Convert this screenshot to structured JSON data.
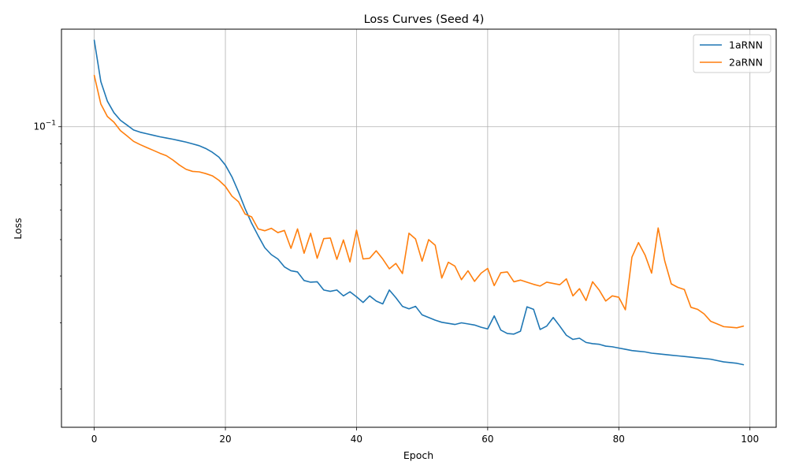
{
  "chart_data": {
    "type": "line",
    "title": "Loss Curves (Seed 4)",
    "xlabel": "Epoch",
    "ylabel": "Loss",
    "y_scale": "log",
    "xlim": [
      -5,
      104
    ],
    "ylim": [
      0.0158,
      0.182
    ],
    "x_ticks": [
      0,
      20,
      40,
      60,
      80,
      100
    ],
    "y_ticks": [
      {
        "value": 0.1,
        "label": "10^-1"
      }
    ],
    "grid": true,
    "legend_position": "upper right",
    "series": [
      {
        "name": "1aRNN",
        "color": "#1f77b4",
        "x_start": 0,
        "values": [
          0.17,
          0.132,
          0.117,
          0.109,
          0.104,
          0.101,
          0.098,
          0.0967,
          0.0958,
          0.0949,
          0.094,
          0.0933,
          0.0926,
          0.0918,
          0.091,
          0.09,
          0.089,
          0.0875,
          0.0855,
          0.083,
          0.079,
          0.0735,
          0.067,
          0.0605,
          0.0553,
          0.0512,
          0.0476,
          0.0456,
          0.0444,
          0.0423,
          0.0413,
          0.041,
          0.0389,
          0.0385,
          0.0386,
          0.0367,
          0.0364,
          0.0367,
          0.0354,
          0.0363,
          0.0352,
          0.034,
          0.0354,
          0.0343,
          0.0337,
          0.0367,
          0.035,
          0.0332,
          0.0327,
          0.0332,
          0.0315,
          0.031,
          0.0305,
          0.0301,
          0.0299,
          0.0297,
          0.03,
          0.0298,
          0.0296,
          0.0292,
          0.0289,
          0.0313,
          0.0287,
          0.0281,
          0.028,
          0.0285,
          0.0331,
          0.0326,
          0.0288,
          0.0294,
          0.031,
          0.0294,
          0.0278,
          0.0271,
          0.0273,
          0.0266,
          0.0264,
          0.0263,
          0.026,
          0.0259,
          0.0257,
          0.0255,
          0.0253,
          0.0252,
          0.0251,
          0.0249,
          0.0248,
          0.0247,
          0.0246,
          0.0245,
          0.0244,
          0.0243,
          0.0242,
          0.0241,
          0.024,
          0.0238,
          0.0236,
          0.0235,
          0.0234,
          0.0232
        ]
      },
      {
        "name": "2aRNN",
        "color": "#ff7f0e",
        "x_start": 0,
        "values": [
          0.137,
          0.115,
          0.1065,
          0.1028,
          0.0976,
          0.0945,
          0.0914,
          0.0896,
          0.088,
          0.0865,
          0.085,
          0.0837,
          0.0815,
          0.079,
          0.077,
          0.076,
          0.0758,
          0.075,
          0.074,
          0.072,
          0.0693,
          0.0653,
          0.0631,
          0.0585,
          0.0575,
          0.0534,
          0.0528,
          0.0536,
          0.0522,
          0.0529,
          0.0474,
          0.0534,
          0.046,
          0.052,
          0.0446,
          0.0503,
          0.0505,
          0.0443,
          0.0499,
          0.0436,
          0.053,
          0.0444,
          0.0446,
          0.0467,
          0.0444,
          0.0418,
          0.0432,
          0.0406,
          0.052,
          0.0502,
          0.0438,
          0.05,
          0.0483,
          0.0395,
          0.0435,
          0.0425,
          0.0391,
          0.0413,
          0.0387,
          0.0407,
          0.0419,
          0.0377,
          0.0408,
          0.041,
          0.0386,
          0.039,
          0.0385,
          0.038,
          0.0376,
          0.0385,
          0.0382,
          0.0379,
          0.0393,
          0.0354,
          0.037,
          0.0344,
          0.0386,
          0.0367,
          0.0343,
          0.0354,
          0.0351,
          0.0325,
          0.0449,
          0.0491,
          0.0455,
          0.0407,
          0.0537,
          0.0439,
          0.0381,
          0.0373,
          0.0368,
          0.033,
          0.0326,
          0.0317,
          0.0303,
          0.0298,
          0.0293,
          0.0292,
          0.0291,
          0.0294
        ]
      }
    ]
  }
}
